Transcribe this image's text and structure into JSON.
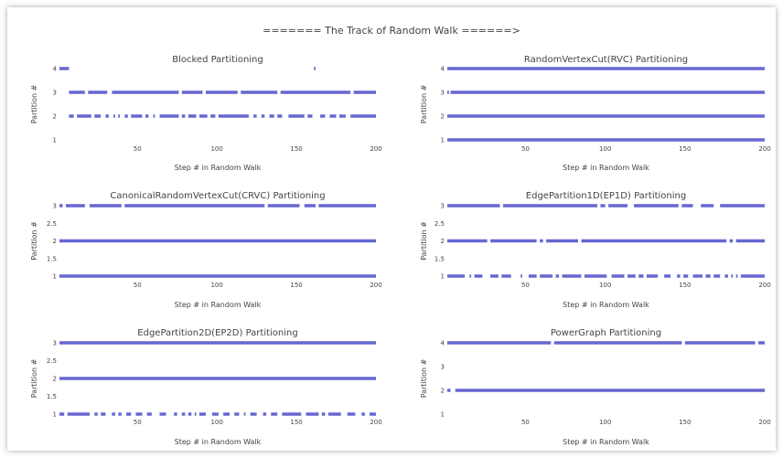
{
  "page_title": "======= The Track of Random Walk ======>",
  "colors": {
    "series": "#6667d1",
    "text": "#444444",
    "background": "#ffffff"
  },
  "chart_data": [
    {
      "type": "timeline",
      "title": "Blocked Partitioning",
      "xlabel": "Step # in Random Walk",
      "ylabel": "Partition #",
      "xlim": [
        1,
        200
      ],
      "ylim": [
        1,
        4
      ],
      "xticks": [
        50,
        100,
        150,
        200
      ],
      "yticks": [
        1,
        2,
        3,
        4
      ],
      "segments": [
        {
          "y": 4,
          "x": [
            [
              1,
              7
            ],
            [
              161,
              162
            ]
          ]
        },
        {
          "y": 3,
          "x": [
            [
              7,
              17
            ],
            [
              19,
              31
            ],
            [
              34,
              76
            ],
            [
              78,
              91
            ],
            [
              93,
              113
            ],
            [
              115,
              138
            ],
            [
              140,
              184
            ],
            [
              186,
              200
            ]
          ]
        },
        {
          "y": 2,
          "x": [
            [
              7,
              10
            ],
            [
              12,
              21
            ],
            [
              23,
              27
            ],
            [
              30,
              32
            ],
            [
              35,
              36
            ],
            [
              38,
              39
            ],
            [
              42,
              44
            ],
            [
              46,
              53
            ],
            [
              55,
              57
            ],
            [
              60,
              61
            ],
            [
              64,
              76
            ],
            [
              78,
              80
            ],
            [
              82,
              87
            ],
            [
              89,
              94
            ],
            [
              96,
              99
            ],
            [
              101,
              120
            ],
            [
              123,
              125
            ],
            [
              128,
              130
            ],
            [
              133,
              136
            ],
            [
              138,
              141
            ],
            [
              145,
              155
            ],
            [
              157,
              160
            ],
            [
              165,
              168
            ],
            [
              171,
              175
            ],
            [
              177,
              181
            ],
            [
              184,
              200
            ]
          ]
        }
      ]
    },
    {
      "type": "timeline",
      "title": "RandomVertexCut(RVC) Partitioning",
      "xlabel": "Step # in Random Walk",
      "ylabel": "Partition #",
      "xlim": [
        1,
        200
      ],
      "ylim": [
        1,
        4
      ],
      "xticks": [
        50,
        100,
        150,
        200
      ],
      "yticks": [
        1,
        2,
        3,
        4
      ],
      "segments": [
        {
          "y": 4,
          "x": [
            [
              1,
              200
            ]
          ]
        },
        {
          "y": 3,
          "x": [
            [
              1,
              2
            ],
            [
              3,
              200
            ]
          ]
        },
        {
          "y": 2,
          "x": [
            [
              1,
              200
            ]
          ]
        },
        {
          "y": 1,
          "x": [
            [
              1,
              200
            ]
          ]
        }
      ]
    },
    {
      "type": "timeline",
      "title": "CanonicalRandomVertexCut(CRVC) Partitioning",
      "xlabel": "Step # in Random Walk",
      "ylabel": "Partition #",
      "xlim": [
        1,
        200
      ],
      "ylim": [
        1,
        3
      ],
      "xticks": [
        50,
        100,
        150,
        200
      ],
      "yticks": [
        1,
        1.5,
        2,
        2.5,
        3
      ],
      "segments": [
        {
          "y": 3,
          "x": [
            [
              1,
              3
            ],
            [
              5,
              17
            ],
            [
              20,
              40
            ],
            [
              42,
              130
            ],
            [
              132,
              152
            ],
            [
              155,
              162
            ],
            [
              164,
              200
            ]
          ]
        },
        {
          "y": 2,
          "x": [
            [
              1,
              200
            ]
          ]
        },
        {
          "y": 1,
          "x": [
            [
              1,
              200
            ]
          ]
        }
      ]
    },
    {
      "type": "timeline",
      "title": "EdgePartition1D(EP1D) Partitioning",
      "xlabel": "Step # in Random Walk",
      "ylabel": "Partition #",
      "xlim": [
        1,
        200
      ],
      "ylim": [
        1,
        3
      ],
      "xticks": [
        50,
        100,
        150,
        200
      ],
      "yticks": [
        1,
        1.5,
        2,
        2.5,
        3
      ],
      "segments": [
        {
          "y": 3,
          "x": [
            [
              1,
              34
            ],
            [
              36,
              95
            ],
            [
              97,
              100
            ],
            [
              102,
              114
            ],
            [
              118,
              146
            ],
            [
              148,
              155
            ],
            [
              160,
              168
            ],
            [
              172,
              200
            ]
          ]
        },
        {
          "y": 2,
          "x": [
            [
              1,
              26
            ],
            [
              28,
              57
            ],
            [
              59,
              61
            ],
            [
              63,
              83
            ],
            [
              85,
              176
            ],
            [
              178,
              180
            ],
            [
              182,
              200
            ]
          ]
        },
        {
          "y": 1,
          "x": [
            [
              1,
              12
            ],
            [
              15,
              16
            ],
            [
              18,
              23
            ],
            [
              28,
              33
            ],
            [
              35,
              41
            ],
            [
              47,
              48
            ],
            [
              52,
              57
            ],
            [
              59,
              67
            ],
            [
              69,
              71
            ],
            [
              73,
              85
            ],
            [
              87,
              101
            ],
            [
              104,
              112
            ],
            [
              114,
              119
            ],
            [
              121,
              124
            ],
            [
              126,
              133
            ],
            [
              137,
              141
            ],
            [
              145,
              147
            ],
            [
              149,
              152
            ],
            [
              155,
              161
            ],
            [
              163,
              166
            ],
            [
              168,
              172
            ],
            [
              175,
              177
            ],
            [
              179,
              180
            ],
            [
              182,
              183
            ],
            [
              185,
              200
            ]
          ]
        }
      ]
    },
    {
      "type": "timeline",
      "title": "EdgePartition2D(EP2D) Partitioning",
      "xlabel": "Step # in Random Walk",
      "ylabel": "Partition #",
      "xlim": [
        1,
        200
      ],
      "ylim": [
        1,
        3
      ],
      "xticks": [
        50,
        100,
        150,
        200
      ],
      "yticks": [
        1,
        1.5,
        2,
        2.5,
        3
      ],
      "segments": [
        {
          "y": 3,
          "x": [
            [
              1,
              200
            ]
          ]
        },
        {
          "y": 2,
          "x": [
            [
              1,
              200
            ]
          ]
        },
        {
          "y": 1,
          "x": [
            [
              1,
              4
            ],
            [
              6,
              20
            ],
            [
              23,
              25
            ],
            [
              27,
              30
            ],
            [
              34,
              36
            ],
            [
              38,
              40
            ],
            [
              43,
              46
            ],
            [
              49,
              53
            ],
            [
              56,
              59
            ],
            [
              64,
              68
            ],
            [
              73,
              75
            ],
            [
              78,
              80
            ],
            [
              82,
              84
            ],
            [
              86,
              87
            ],
            [
              89,
              93
            ],
            [
              97,
              101
            ],
            [
              104,
              108
            ],
            [
              111,
              114
            ],
            [
              117,
              118
            ],
            [
              121,
              125
            ],
            [
              129,
              131
            ],
            [
              134,
              138
            ],
            [
              141,
              153
            ],
            [
              156,
              164
            ],
            [
              166,
              168
            ],
            [
              170,
              178
            ],
            [
              182,
              187
            ],
            [
              191,
              193
            ],
            [
              196,
              200
            ]
          ]
        }
      ]
    },
    {
      "type": "timeline",
      "title": "PowerGraph Partitioning",
      "xlabel": "Step # in Random Walk",
      "ylabel": "Partition #",
      "xlim": [
        1,
        200
      ],
      "ylim": [
        1,
        4
      ],
      "xticks": [
        50,
        100,
        150,
        200
      ],
      "yticks": [
        1,
        2,
        3,
        4
      ],
      "segments": [
        {
          "y": 4,
          "x": [
            [
              1,
              66
            ],
            [
              68,
              148
            ],
            [
              150,
              194
            ],
            [
              196,
              200
            ]
          ]
        },
        {
          "y": 2,
          "x": [
            [
              1,
              3
            ],
            [
              6,
              200
            ]
          ]
        }
      ]
    }
  ]
}
